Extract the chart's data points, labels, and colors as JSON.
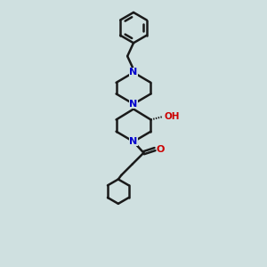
{
  "background_color": "#cfe0e0",
  "bond_color": "#1a1a1a",
  "N_color": "#0000cc",
  "O_color": "#cc0000",
  "OH_color": "#008080",
  "bond_width": 1.8,
  "fig_size": [
    3.0,
    3.0
  ],
  "dpi": 100,
  "xlim": [
    2.5,
    7.5
  ],
  "ylim": [
    0.5,
    13.5
  ]
}
